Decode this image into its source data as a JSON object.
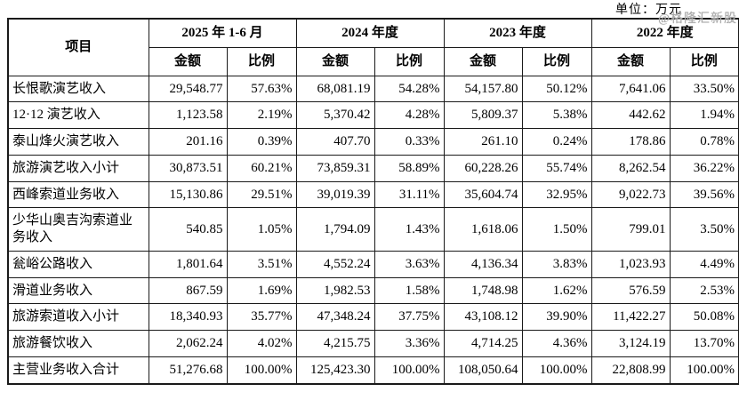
{
  "unit_label": "单位：万元",
  "watermark": "@格隆汇新股",
  "colors": {
    "text": "#000000",
    "border": "#1a1a1a",
    "watermark": "#a9a9a9",
    "background": "#ffffff"
  },
  "table": {
    "header": {
      "item_col": "项目",
      "periods": [
        "2025 年 1-6 月",
        "2024 年度",
        "2023 年度",
        "2022 年度"
      ],
      "amount_label": "金额",
      "ratio_label": "比例"
    },
    "rows": [
      {
        "label": "长恨歌演艺收入",
        "values": [
          "29,548.77",
          "57.63%",
          "68,081.19",
          "54.28%",
          "54,157.80",
          "50.12%",
          "7,641.06",
          "33.50%"
        ]
      },
      {
        "label": "12·12 演艺收入",
        "values": [
          "1,123.58",
          "2.19%",
          "5,370.42",
          "4.28%",
          "5,809.37",
          "5.38%",
          "442.62",
          "1.94%"
        ]
      },
      {
        "label": "泰山烽火演艺收入",
        "values": [
          "201.16",
          "0.39%",
          "407.70",
          "0.33%",
          "261.10",
          "0.24%",
          "178.86",
          "0.78%"
        ]
      },
      {
        "label": "旅游演艺收入小计",
        "values": [
          "30,873.51",
          "60.21%",
          "73,859.31",
          "58.89%",
          "60,228.26",
          "55.74%",
          "8,262.54",
          "36.22%"
        ]
      },
      {
        "label": "西峰索道业务收入",
        "values": [
          "15,130.86",
          "29.51%",
          "39,019.39",
          "31.11%",
          "35,604.74",
          "32.95%",
          "9,022.73",
          "39.56%"
        ]
      },
      {
        "label": "少华山奥吉沟索道业务收入",
        "values": [
          "540.85",
          "1.05%",
          "1,794.09",
          "1.43%",
          "1,618.06",
          "1.50%",
          "799.01",
          "3.50%"
        ]
      },
      {
        "label": "瓮峪公路收入",
        "values": [
          "1,801.64",
          "3.51%",
          "4,552.24",
          "3.63%",
          "4,136.34",
          "3.83%",
          "1,023.93",
          "4.49%"
        ]
      },
      {
        "label": "滑道业务收入",
        "values": [
          "867.59",
          "1.69%",
          "1,982.53",
          "1.58%",
          "1,748.98",
          "1.62%",
          "576.59",
          "2.53%"
        ]
      },
      {
        "label": "旅游索道收入小计",
        "values": [
          "18,340.93",
          "35.77%",
          "47,348.24",
          "37.75%",
          "43,108.12",
          "39.90%",
          "11,422.27",
          "50.08%"
        ]
      },
      {
        "label": "旅游餐饮收入",
        "values": [
          "2,062.24",
          "4.02%",
          "4,215.75",
          "3.36%",
          "4,714.25",
          "4.36%",
          "3,124.19",
          "13.70%"
        ]
      },
      {
        "label": "主营业务收入合计",
        "values": [
          "51,276.68",
          "100.00%",
          "125,423.30",
          "100.00%",
          "108,050.64",
          "100.00%",
          "22,808.99",
          "100.00%"
        ]
      }
    ]
  },
  "chart_data": {
    "type": "table",
    "title": "主营业务收入构成",
    "unit": "万元",
    "columns": [
      "项目",
      "2025年1-6月 金额",
      "2025年1-6月 比例",
      "2024年度 金额",
      "2024年度 比例",
      "2023年度 金额",
      "2023年度 比例",
      "2022年度 金额",
      "2022年度 比例"
    ]
  }
}
